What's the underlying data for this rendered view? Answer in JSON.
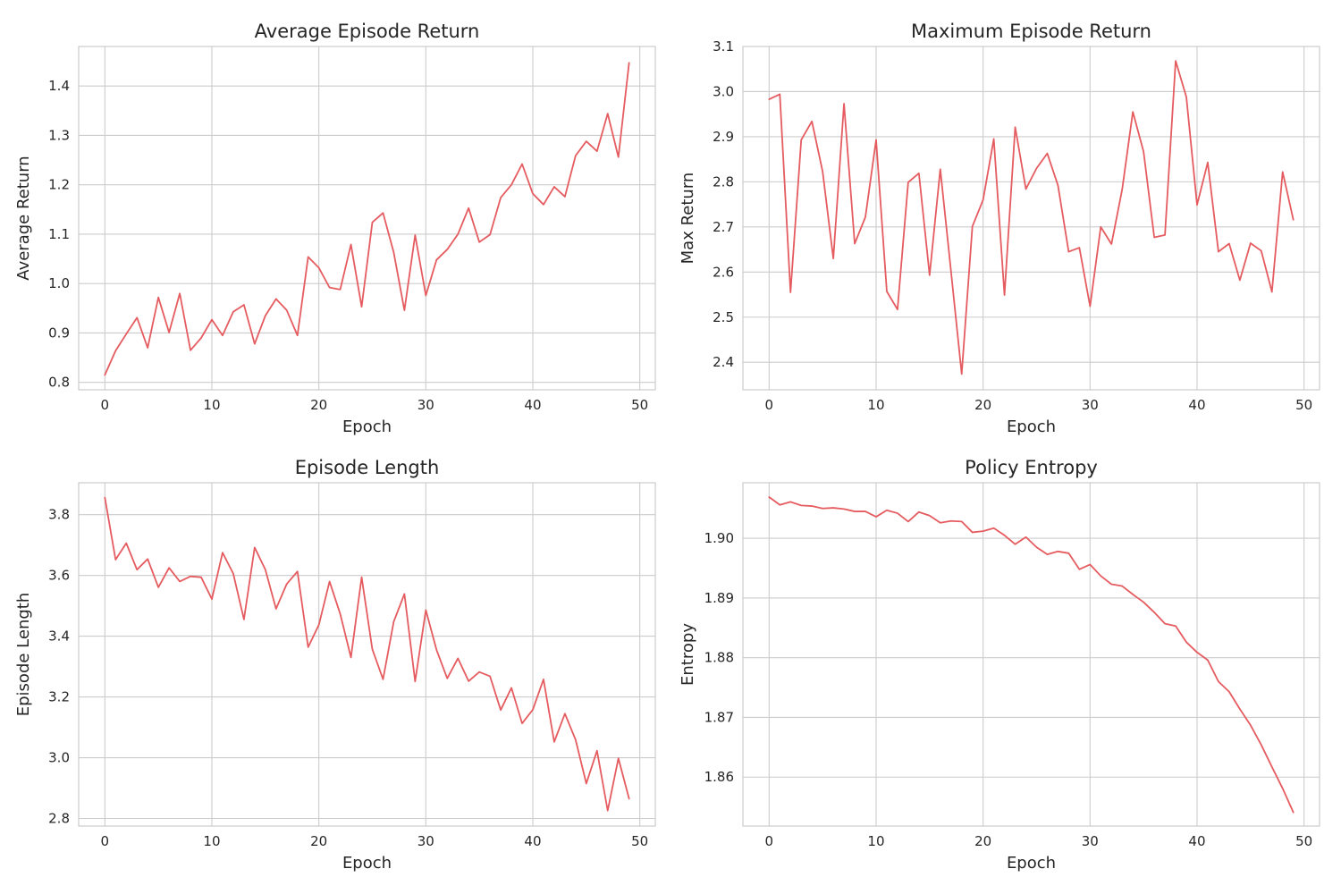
{
  "colors": {
    "series": "#e55c60",
    "grid": "#cccccc",
    "text": "#262626"
  },
  "chart_data": [
    {
      "type": "line",
      "title": "Average Episode Return",
      "xlabel": "Epoch",
      "ylabel": "Average Return",
      "grid": true,
      "xlim": [
        -2.45,
        51.45
      ],
      "ylim": [
        0.785,
        1.48
      ],
      "xticks": [
        0,
        10,
        20,
        30,
        40,
        50
      ],
      "yticks": [
        0.8,
        0.9,
        1.0,
        1.1,
        1.2,
        1.3,
        1.4
      ],
      "ytick_labels": [
        "0.8",
        "0.9",
        "1.0",
        "1.1",
        "1.2",
        "1.3",
        "1.4"
      ],
      "x": [
        0,
        1,
        2,
        3,
        4,
        5,
        6,
        7,
        8,
        9,
        10,
        11,
        12,
        13,
        14,
        15,
        16,
        17,
        18,
        19,
        20,
        21,
        22,
        23,
        24,
        25,
        26,
        27,
        28,
        29,
        30,
        31,
        32,
        33,
        34,
        35,
        36,
        37,
        38,
        39,
        40,
        41,
        42,
        43,
        44,
        45,
        46,
        47,
        48,
        49
      ],
      "series": [
        {
          "values": [
            0.815,
            0.864,
            0.898,
            0.931,
            0.87,
            0.972,
            0.901,
            0.98,
            0.865,
            0.89,
            0.927,
            0.895,
            0.943,
            0.957,
            0.878,
            0.935,
            0.969,
            0.946,
            0.895,
            1.054,
            1.032,
            0.992,
            0.988,
            1.079,
            0.953,
            1.124,
            1.143,
            1.063,
            0.946,
            1.098,
            0.976,
            1.048,
            1.069,
            1.1,
            1.153,
            1.084,
            1.099,
            1.174,
            1.2,
            1.242,
            1.182,
            1.16,
            1.196,
            1.176,
            1.259,
            1.288,
            1.268,
            1.344,
            1.256,
            1.447
          ]
        }
      ]
    },
    {
      "type": "line",
      "title": "Maximum Episode Return",
      "xlabel": "Epoch",
      "ylabel": "Max Return",
      "grid": true,
      "xlim": [
        -2.45,
        51.45
      ],
      "ylim": [
        2.339,
        3.1
      ],
      "xticks": [
        0,
        10,
        20,
        30,
        40,
        50
      ],
      "yticks": [
        2.4,
        2.5,
        2.6,
        2.7,
        2.8,
        2.9,
        3.0,
        3.1
      ],
      "ytick_labels": [
        "2.4",
        "2.5",
        "2.6",
        "2.7",
        "2.8",
        "2.9",
        "3.0",
        "3.1"
      ],
      "x": [
        0,
        1,
        2,
        3,
        4,
        5,
        6,
        7,
        8,
        9,
        10,
        11,
        12,
        13,
        14,
        15,
        16,
        17,
        18,
        19,
        20,
        21,
        22,
        23,
        24,
        25,
        26,
        27,
        28,
        29,
        30,
        31,
        32,
        33,
        34,
        35,
        36,
        37,
        38,
        39,
        40,
        41,
        42,
        43,
        44,
        45,
        46,
        47,
        48,
        49
      ],
      "series": [
        {
          "values": [
            2.983,
            2.994,
            2.555,
            2.893,
            2.934,
            2.823,
            2.63,
            2.973,
            2.663,
            2.722,
            2.893,
            2.557,
            2.517,
            2.799,
            2.819,
            2.593,
            2.828,
            2.602,
            2.374,
            2.701,
            2.76,
            2.895,
            2.549,
            2.921,
            2.784,
            2.83,
            2.863,
            2.792,
            2.645,
            2.654,
            2.524,
            2.7,
            2.662,
            2.783,
            2.955,
            2.867,
            2.677,
            2.682,
            3.068,
            2.988,
            2.749,
            2.843,
            2.645,
            2.663,
            2.582,
            2.664,
            2.647,
            2.556,
            2.822,
            2.716
          ]
        }
      ]
    },
    {
      "type": "line",
      "title": "Episode Length",
      "xlabel": "Epoch",
      "ylabel": "Episode Length",
      "grid": true,
      "xlim": [
        -2.45,
        51.45
      ],
      "ylim": [
        2.775,
        3.905
      ],
      "xticks": [
        0,
        10,
        20,
        30,
        40,
        50
      ],
      "yticks": [
        2.8,
        3.0,
        3.2,
        3.4,
        3.6,
        3.8
      ],
      "ytick_labels": [
        "2.8",
        "3.0",
        "3.2",
        "3.4",
        "3.6",
        "3.8"
      ],
      "x": [
        0,
        1,
        2,
        3,
        4,
        5,
        6,
        7,
        8,
        9,
        10,
        11,
        12,
        13,
        14,
        15,
        16,
        17,
        18,
        19,
        20,
        21,
        22,
        23,
        24,
        25,
        26,
        27,
        28,
        29,
        30,
        31,
        32,
        33,
        34,
        35,
        36,
        37,
        38,
        39,
        40,
        41,
        42,
        43,
        44,
        45,
        46,
        47,
        48,
        49
      ],
      "series": [
        {
          "values": [
            3.856,
            3.652,
            3.706,
            3.619,
            3.654,
            3.561,
            3.625,
            3.58,
            3.597,
            3.594,
            3.522,
            3.675,
            3.606,
            3.455,
            3.692,
            3.619,
            3.49,
            3.572,
            3.613,
            3.364,
            3.437,
            3.58,
            3.473,
            3.33,
            3.594,
            3.357,
            3.258,
            3.448,
            3.539,
            3.251,
            3.486,
            3.355,
            3.261,
            3.327,
            3.252,
            3.282,
            3.268,
            3.157,
            3.23,
            3.113,
            3.158,
            3.258,
            3.052,
            3.145,
            3.059,
            2.915,
            3.023,
            2.826,
            2.998,
            2.865
          ]
        }
      ]
    },
    {
      "type": "line",
      "title": "Policy Entropy",
      "xlabel": "Epoch",
      "ylabel": "Entropy",
      "grid": true,
      "xlim": [
        -2.45,
        51.45
      ],
      "ylim": [
        1.8518,
        1.9093
      ],
      "xticks": [
        0,
        10,
        20,
        30,
        40,
        50
      ],
      "yticks": [
        1.86,
        1.87,
        1.88,
        1.89,
        1.9
      ],
      "ytick_labels": [
        "1.86",
        "1.87",
        "1.88",
        "1.89",
        "1.90"
      ],
      "x": [
        0,
        1,
        2,
        3,
        4,
        5,
        6,
        7,
        8,
        9,
        10,
        11,
        12,
        13,
        14,
        15,
        16,
        17,
        18,
        19,
        20,
        21,
        22,
        23,
        24,
        25,
        26,
        27,
        28,
        29,
        30,
        31,
        32,
        33,
        34,
        35,
        36,
        37,
        38,
        39,
        40,
        41,
        42,
        43,
        44,
        45,
        46,
        47,
        48,
        49
      ],
      "series": [
        {
          "values": [
            1.9069,
            1.9056,
            1.9061,
            1.9055,
            1.9054,
            1.905,
            1.9051,
            1.9049,
            1.9045,
            1.9045,
            1.9036,
            1.9047,
            1.9042,
            1.9028,
            1.9044,
            1.9038,
            1.9026,
            1.9029,
            1.9028,
            1.901,
            1.9012,
            1.9017,
            1.9005,
            1.899,
            1.9002,
            1.8985,
            1.8973,
            1.8978,
            1.8975,
            1.8948,
            1.8956,
            1.8937,
            1.8923,
            1.892,
            1.8906,
            1.8893,
            1.8876,
            1.8857,
            1.8853,
            1.8826,
            1.8809,
            1.8796,
            1.876,
            1.8743,
            1.8714,
            1.8687,
            1.8654,
            1.8617,
            1.8581,
            1.8541
          ]
        }
      ]
    }
  ]
}
